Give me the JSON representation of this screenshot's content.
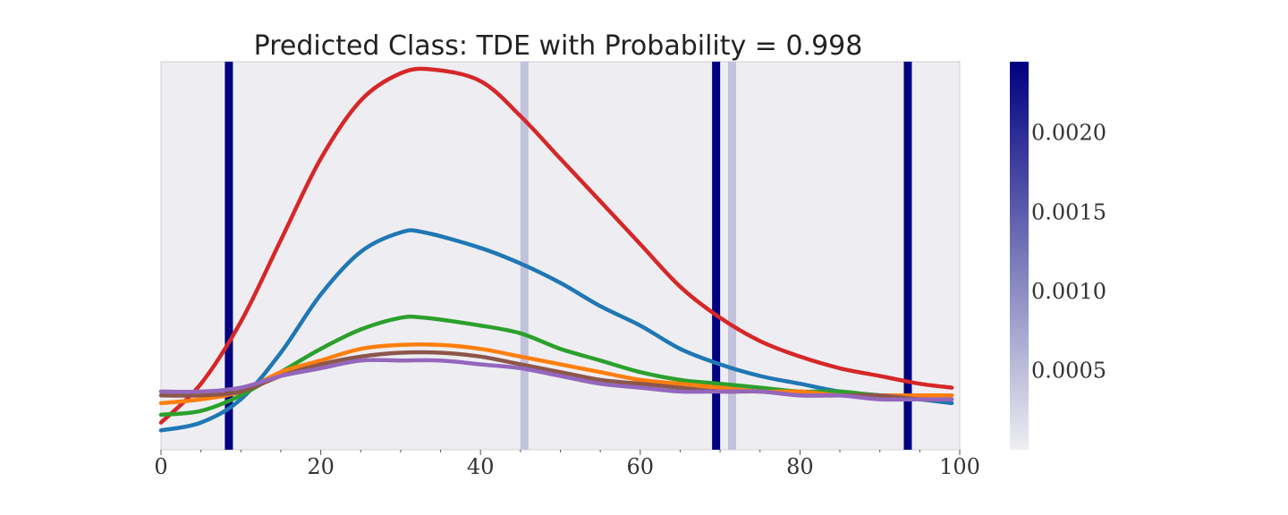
{
  "chart_data": {
    "type": "line",
    "title": "Predicted Class: TDE with Probability = 0.998",
    "xlabel": "",
    "ylabel": "",
    "xlim": [
      0,
      100
    ],
    "ylim": [
      0,
      1
    ],
    "x_ticks": [
      "0",
      "20",
      "40",
      "60",
      "80",
      "100"
    ],
    "x_minor_ticks": [
      5,
      10,
      15,
      25,
      30,
      35,
      45,
      50,
      55,
      65,
      70,
      75,
      85,
      90,
      95
    ],
    "y_ticks": [],
    "grid": false,
    "background": "#eeeef2",
    "series": [
      {
        "color": "#d62728",
        "x": [
          0,
          5,
          10,
          15,
          20,
          25,
          30,
          34,
          40,
          45,
          50,
          55,
          60,
          65,
          70,
          75,
          80,
          85,
          90,
          95,
          99
        ],
        "y": [
          0.07,
          0.17,
          0.33,
          0.54,
          0.75,
          0.9,
          0.97,
          0.98,
          0.95,
          0.86,
          0.75,
          0.64,
          0.53,
          0.42,
          0.34,
          0.28,
          0.24,
          0.21,
          0.19,
          0.17,
          0.16
        ]
      },
      {
        "color": "#1f77b4",
        "x": [
          0,
          5,
          10,
          15,
          20,
          25,
          30,
          33,
          40,
          45,
          50,
          55,
          60,
          65,
          70,
          75,
          80,
          85,
          90,
          95,
          99
        ],
        "y": [
          0.05,
          0.07,
          0.13,
          0.25,
          0.4,
          0.51,
          0.56,
          0.56,
          0.52,
          0.48,
          0.43,
          0.37,
          0.32,
          0.26,
          0.22,
          0.19,
          0.17,
          0.15,
          0.14,
          0.13,
          0.12
        ]
      },
      {
        "color": "#2ca02c",
        "x": [
          0,
          5,
          10,
          15,
          20,
          25,
          30,
          33,
          40,
          45,
          50,
          55,
          60,
          65,
          70,
          75,
          80,
          85,
          90,
          95,
          99
        ],
        "y": [
          0.09,
          0.1,
          0.14,
          0.2,
          0.26,
          0.31,
          0.34,
          0.34,
          0.32,
          0.3,
          0.26,
          0.23,
          0.2,
          0.18,
          0.17,
          0.16,
          0.15,
          0.15,
          0.14,
          0.14,
          0.14
        ]
      },
      {
        "color": "#ff7f0e",
        "x": [
          0,
          5,
          10,
          15,
          20,
          25,
          30,
          35,
          40,
          45,
          50,
          55,
          60,
          65,
          70,
          75,
          80,
          85,
          90,
          95,
          99
        ],
        "y": [
          0.12,
          0.13,
          0.15,
          0.2,
          0.23,
          0.26,
          0.27,
          0.27,
          0.26,
          0.24,
          0.22,
          0.2,
          0.18,
          0.17,
          0.16,
          0.15,
          0.15,
          0.14,
          0.14,
          0.14,
          0.14
        ]
      },
      {
        "color": "#8c564b",
        "x": [
          0,
          5,
          10,
          15,
          20,
          25,
          30,
          35,
          40,
          45,
          50,
          55,
          60,
          65,
          70,
          75,
          80,
          85,
          90,
          95,
          99
        ],
        "y": [
          0.14,
          0.14,
          0.15,
          0.19,
          0.22,
          0.24,
          0.25,
          0.25,
          0.24,
          0.22,
          0.2,
          0.18,
          0.17,
          0.16,
          0.15,
          0.15,
          0.14,
          0.14,
          0.14,
          0.13,
          0.13
        ]
      },
      {
        "color": "#9467bd",
        "x": [
          0,
          5,
          10,
          15,
          20,
          25,
          30,
          35,
          40,
          45,
          50,
          55,
          60,
          65,
          70,
          75,
          80,
          85,
          90,
          95,
          99
        ],
        "y": [
          0.15,
          0.15,
          0.16,
          0.19,
          0.21,
          0.23,
          0.23,
          0.23,
          0.22,
          0.21,
          0.19,
          0.17,
          0.16,
          0.15,
          0.15,
          0.15,
          0.14,
          0.14,
          0.13,
          0.13,
          0.13
        ]
      }
    ],
    "attention_bands": [
      {
        "x": 8.5,
        "value": 0.00245
      },
      {
        "x": 45.5,
        "value": 0.00045
      },
      {
        "x": 69.5,
        "value": 0.00245
      },
      {
        "x": 71.5,
        "value": 0.00045
      },
      {
        "x": 93.5,
        "value": 0.00245
      }
    ],
    "colorbar": {
      "min": 0.0,
      "max": 0.00245,
      "ticks": [
        {
          "value": 0.0005,
          "label": "0.0005"
        },
        {
          "value": 0.001,
          "label": "0.0010"
        },
        {
          "value": 0.0015,
          "label": "0.0015"
        },
        {
          "value": 0.002,
          "label": "0.0020"
        }
      ],
      "color_low": "#eeeef2",
      "color_high": "#000080"
    }
  }
}
